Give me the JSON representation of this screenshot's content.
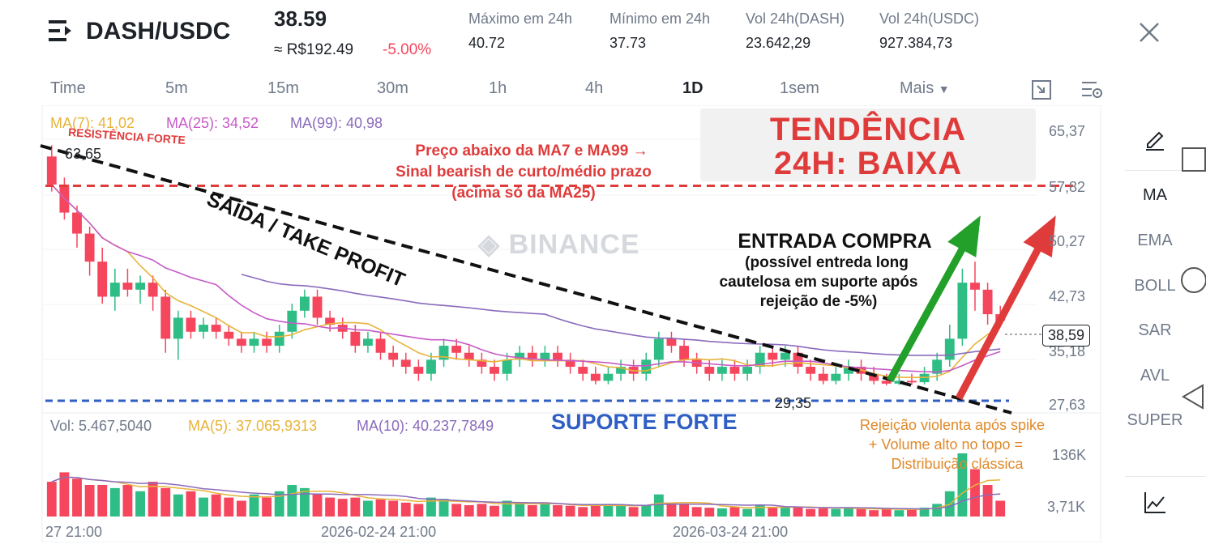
{
  "header": {
    "pair": "DASH/USDC",
    "price": "38.59",
    "price_brl": "≈ R$192.49",
    "change": "-5.00%",
    "stats": [
      {
        "label": "Máximo em 24h",
        "value": "40.72"
      },
      {
        "label": "Mínimo em 24h",
        "value": "37.73"
      },
      {
        "label": "Vol 24h(DASH)",
        "value": "23.642,29"
      },
      {
        "label": "Vol 24h(USDC)",
        "value": "927.384,73"
      }
    ]
  },
  "timeframes": [
    "Time",
    "5m",
    "15m",
    "30m",
    "1h",
    "4h",
    "1D",
    "1sem",
    "Mais"
  ],
  "active_timeframe": "1D",
  "indicators": {
    "ma7": "MA(7): 41,02",
    "ma25": "MA(25): 34,52",
    "ma99": "MA(99): 40,98"
  },
  "y_axis": [
    "65,37",
    "57,82",
    "50,27",
    "42,73",
    "35,18",
    "27,63"
  ],
  "current_price_tag": "38,59",
  "high_label": "63,65",
  "low_label": "29,35",
  "watermark": "BINANCE",
  "volume": {
    "vol": "Vol: 5.467,5040",
    "ma5": "MA(5): 37.065,9313",
    "ma10": "MA(10): 40.237,7849",
    "axis": [
      "136K",
      "3,71K"
    ]
  },
  "x_axis": [
    "27 21:00",
    "2026-02-24 21:00",
    "2026-03-24 21:00"
  ],
  "annotations": {
    "resistance": "RESISTÊNCIA FORTE",
    "trend_line1": "TENDÊNCIA",
    "trend_line2": "24H: BAIXA",
    "bearish": [
      "Preço abaixo da MA7 e MA99 →",
      "Sinal bearish de curto/médio prazo",
      "(acima só da MA25)"
    ],
    "exit": "SAÍDA / TAKE PROFIT",
    "entry_title": "ENTRADA COMPRA",
    "entry_desc": [
      "(possível entreda long",
      "cautelosa em suporte após",
      "rejeição de -5%)"
    ],
    "support": "SUPORTE FORTE",
    "rejection": [
      "Rejeição violenta após spike",
      "+ Volume alto no topo =",
      "Distribuição clássica"
    ]
  },
  "side_menu": [
    "MA",
    "EMA",
    "BOLL",
    "SAR",
    "AVL",
    "SUPER"
  ],
  "colors": {
    "up": "#2ebd85",
    "down": "#f6465d",
    "ma7": "#e8b339",
    "ma25": "#c75ac7",
    "ma99": "#8a6bbd",
    "red_ann": "#e03b3b",
    "blue_support": "#2f5fc4",
    "orange_ann": "#e0892a"
  },
  "chart_data": {
    "type": "candlestick",
    "ylim": [
      26,
      67
    ],
    "candles": [
      [
        62,
        58,
        63.6,
        57
      ],
      [
        58,
        54,
        59,
        53
      ],
      [
        54,
        51,
        55,
        49
      ],
      [
        51,
        47,
        52,
        45
      ],
      [
        47,
        42,
        49,
        41
      ],
      [
        42,
        44,
        46,
        40
      ],
      [
        44,
        43,
        46,
        42
      ],
      [
        43,
        44,
        45,
        41
      ],
      [
        44,
        42,
        45,
        40
      ],
      [
        42,
        36,
        43,
        34
      ],
      [
        36,
        39,
        40,
        33
      ],
      [
        39,
        37,
        40,
        36
      ],
      [
        37,
        38,
        39,
        36
      ],
      [
        38,
        37,
        39,
        36
      ],
      [
        37,
        36,
        38,
        35
      ],
      [
        36,
        35,
        37,
        34
      ],
      [
        35,
        36,
        37,
        34
      ],
      [
        36,
        35,
        37,
        34
      ],
      [
        35,
        37,
        38,
        34
      ],
      [
        37,
        40,
        41,
        36
      ],
      [
        40,
        42,
        43,
        39
      ],
      [
        42,
        39,
        43,
        38
      ],
      [
        39,
        38,
        40,
        37
      ],
      [
        38,
        37,
        39,
        36
      ],
      [
        37,
        35,
        38,
        34
      ],
      [
        35,
        36,
        37,
        34
      ],
      [
        36,
        34,
        37,
        33
      ],
      [
        34,
        33,
        35,
        32
      ],
      [
        33,
        32,
        34,
        31
      ],
      [
        32,
        31,
        33,
        30
      ],
      [
        31,
        33,
        34,
        30
      ],
      [
        33,
        35,
        36,
        32
      ],
      [
        35,
        34,
        36,
        33
      ],
      [
        34,
        33,
        35,
        32
      ],
      [
        33,
        32,
        34,
        31
      ],
      [
        32,
        31,
        33,
        30
      ],
      [
        31,
        33,
        34,
        30
      ],
      [
        33,
        34,
        35,
        32
      ],
      [
        34,
        33,
        35,
        32
      ],
      [
        33,
        34,
        35,
        32
      ],
      [
        34,
        33,
        35,
        32
      ],
      [
        33,
        32,
        34,
        31
      ],
      [
        32,
        31,
        33,
        30
      ],
      [
        31,
        30,
        32,
        29.5
      ],
      [
        30,
        31,
        32,
        29.5
      ],
      [
        31,
        32,
        33,
        30
      ],
      [
        32,
        31,
        33,
        30
      ],
      [
        31,
        33,
        34,
        30
      ],
      [
        33,
        36,
        37,
        32
      ],
      [
        36,
        35,
        37,
        34
      ],
      [
        35,
        33,
        36,
        32
      ],
      [
        33,
        32,
        34,
        31
      ],
      [
        32,
        31,
        33,
        30
      ],
      [
        31,
        32,
        33,
        30
      ],
      [
        32,
        31,
        33,
        30
      ],
      [
        31,
        32,
        33,
        30
      ],
      [
        32,
        34,
        35,
        31
      ],
      [
        34,
        33,
        35,
        32
      ],
      [
        33,
        34,
        35,
        32
      ],
      [
        34,
        32,
        35,
        31
      ],
      [
        32,
        31,
        33,
        30
      ],
      [
        31,
        30,
        32,
        29.5
      ],
      [
        30,
        31,
        32,
        29.5
      ],
      [
        31,
        32,
        33,
        30
      ],
      [
        32,
        31,
        33,
        30
      ],
      [
        31,
        30,
        32,
        29.5
      ],
      [
        30,
        29.6,
        31,
        29.35
      ],
      [
        29.6,
        30,
        31,
        29.4
      ],
      [
        30,
        29.8,
        31,
        29.4
      ],
      [
        29.8,
        31,
        32,
        29.5
      ],
      [
        31,
        33,
        34,
        30
      ],
      [
        33,
        36,
        38,
        32
      ],
      [
        36,
        44,
        46,
        35
      ],
      [
        44,
        43,
        47,
        40
      ],
      [
        43,
        39.5,
        44,
        38
      ],
      [
        39.5,
        38.6,
        40.7,
        37.7
      ]
    ],
    "volume_max": 136000,
    "volumes_rel": [
      0.55,
      0.7,
      0.6,
      0.5,
      0.5,
      0.45,
      0.5,
      0.4,
      0.55,
      0.45,
      0.35,
      0.4,
      0.3,
      0.35,
      0.3,
      0.25,
      0.35,
      0.3,
      0.4,
      0.5,
      0.45,
      0.35,
      0.3,
      0.28,
      0.3,
      0.25,
      0.27,
      0.25,
      0.22,
      0.2,
      0.3,
      0.28,
      0.2,
      0.18,
      0.2,
      0.17,
      0.25,
      0.22,
      0.18,
      0.2,
      0.18,
      0.17,
      0.15,
      0.18,
      0.2,
      0.17,
      0.15,
      0.18,
      0.35,
      0.22,
      0.2,
      0.15,
      0.14,
      0.13,
      0.15,
      0.12,
      0.18,
      0.15,
      0.14,
      0.16,
      0.12,
      0.13,
      0.12,
      0.14,
      0.12,
      0.1,
      0.12,
      0.1,
      0.12,
      0.14,
      0.2,
      0.4,
      1.0,
      0.75,
      0.5,
      0.25
    ]
  }
}
